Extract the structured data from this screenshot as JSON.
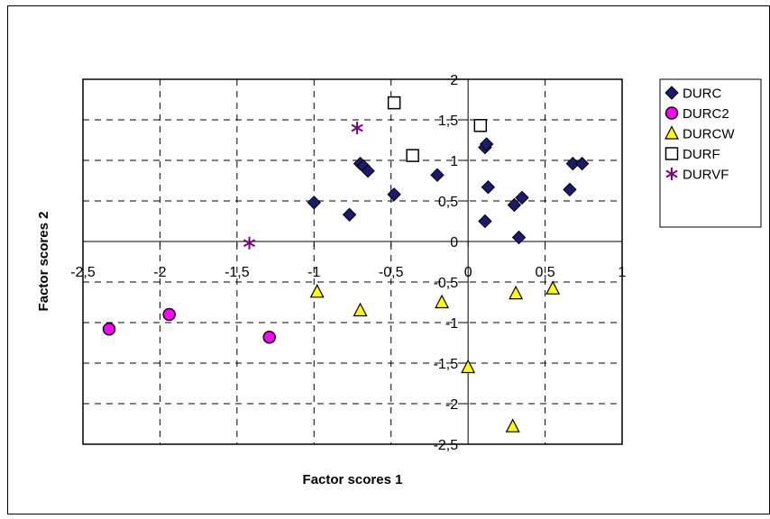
{
  "chart_data": {
    "type": "scatter",
    "title": "",
    "xlabel": "Factor scores 1",
    "ylabel": "Factor scores 2",
    "xlim": [
      -2.5,
      1
    ],
    "ylim": [
      -2.5,
      2
    ],
    "xticks": [
      -2.5,
      -2,
      -1.5,
      -1,
      -0.5,
      0,
      0.5,
      1
    ],
    "yticks": [
      -2.5,
      -2,
      -1.5,
      -1,
      -0.5,
      0,
      0.5,
      1,
      1.5,
      2
    ],
    "xtick_labels": [
      "-2,5",
      "-2",
      "-1,5",
      "-1",
      "-0,5",
      "0",
      "0,5",
      "1"
    ],
    "ytick_labels": [
      "-2,5",
      "-2",
      "-1,5",
      "-1",
      "-0,5",
      "0",
      "0,5",
      "1",
      "1,5",
      "2"
    ],
    "grid": true,
    "grid_style": "dashed",
    "legend_position": "right",
    "series": [
      {
        "name": "DURC",
        "marker": "diamond",
        "color": "#1a1a6e",
        "points": [
          [
            -1.0,
            0.48
          ],
          [
            -0.77,
            0.33
          ],
          [
            -0.7,
            0.96
          ],
          [
            -0.68,
            0.93
          ],
          [
            -0.65,
            0.87
          ],
          [
            -0.48,
            0.58
          ],
          [
            -0.2,
            0.82
          ],
          [
            0.11,
            1.16
          ],
          [
            0.12,
            1.2
          ],
          [
            0.13,
            0.67
          ],
          [
            0.11,
            0.25
          ],
          [
            0.3,
            0.45
          ],
          [
            0.35,
            0.54
          ],
          [
            0.33,
            0.05
          ],
          [
            0.66,
            0.64
          ],
          [
            0.68,
            0.96
          ],
          [
            0.74,
            0.96
          ]
        ]
      },
      {
        "name": "DURC2",
        "marker": "circle",
        "color": "#ff00ff",
        "points": [
          [
            -2.33,
            -1.08
          ],
          [
            -1.94,
            -0.9
          ],
          [
            -1.29,
            -1.18
          ]
        ]
      },
      {
        "name": "DURCW",
        "marker": "triangle",
        "color": "#ffff00",
        "points": [
          [
            -0.98,
            -0.62
          ],
          [
            -0.7,
            -0.85
          ],
          [
            -0.17,
            -0.75
          ],
          [
            0.0,
            -1.55
          ],
          [
            0.31,
            -0.64
          ],
          [
            0.55,
            -0.58
          ],
          [
            0.29,
            -2.28
          ]
        ]
      },
      {
        "name": "DURF",
        "marker": "square",
        "color": "#ffffff",
        "points": [
          [
            -0.48,
            1.71
          ],
          [
            -0.36,
            1.06
          ],
          [
            0.08,
            1.43
          ]
        ]
      },
      {
        "name": "DURVF",
        "marker": "asterisk",
        "color": "#800080",
        "points": [
          [
            -0.72,
            1.4
          ],
          [
            -1.42,
            -0.02
          ]
        ]
      }
    ]
  }
}
